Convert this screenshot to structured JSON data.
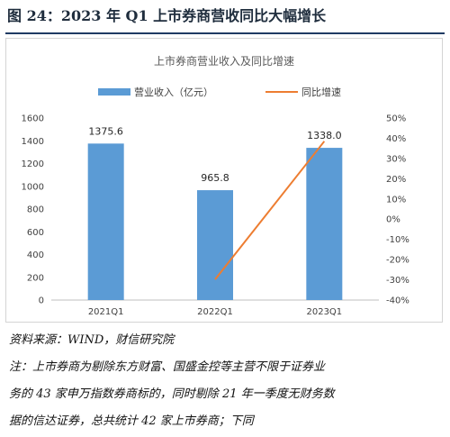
{
  "figure": {
    "title": "图 24：2023 年 Q1 上市券商营收同比大幅增长"
  },
  "chart_data": {
    "type": "bar",
    "title": "上市券商营业收入及同比增速",
    "categories": [
      "2021Q1",
      "2022Q1",
      "2023Q1"
    ],
    "series": [
      {
        "name": "营业收入（亿元）",
        "type": "bar",
        "axis": "left",
        "color": "#5b9bd5",
        "values": [
          1375.6,
          965.8,
          1338.0
        ],
        "labels": [
          "1375.6",
          "965.8",
          "1338.0"
        ]
      },
      {
        "name": "同比增速",
        "type": "line",
        "axis": "right",
        "color": "#ed7d31",
        "values": [
          null,
          -29.8,
          38.5
        ]
      }
    ],
    "left_axis": {
      "min": 0,
      "max": 1600,
      "step": 200,
      "ticks": [
        "0",
        "200",
        "400",
        "600",
        "800",
        "1000",
        "1200",
        "1400",
        "1600"
      ]
    },
    "right_axis": {
      "min": -40,
      "max": 50,
      "step": 10,
      "ticks": [
        "-40%",
        "-30%",
        "-20%",
        "-10%",
        "0%",
        "10%",
        "20%",
        "30%",
        "40%",
        "50%"
      ]
    },
    "legend_position": "top",
    "grid": false
  },
  "notes": {
    "source": "资料来源：WIND，财信研究院",
    "line1": "注：上市券商为剔除东方财富、国盛金控等主营不限于证券业",
    "line2": "务的 43 家申万指数券商标的，同时剔除 21 年一季度无财务数",
    "line3": "据的信达证券，总共统计 42 家上市券商；下同"
  }
}
